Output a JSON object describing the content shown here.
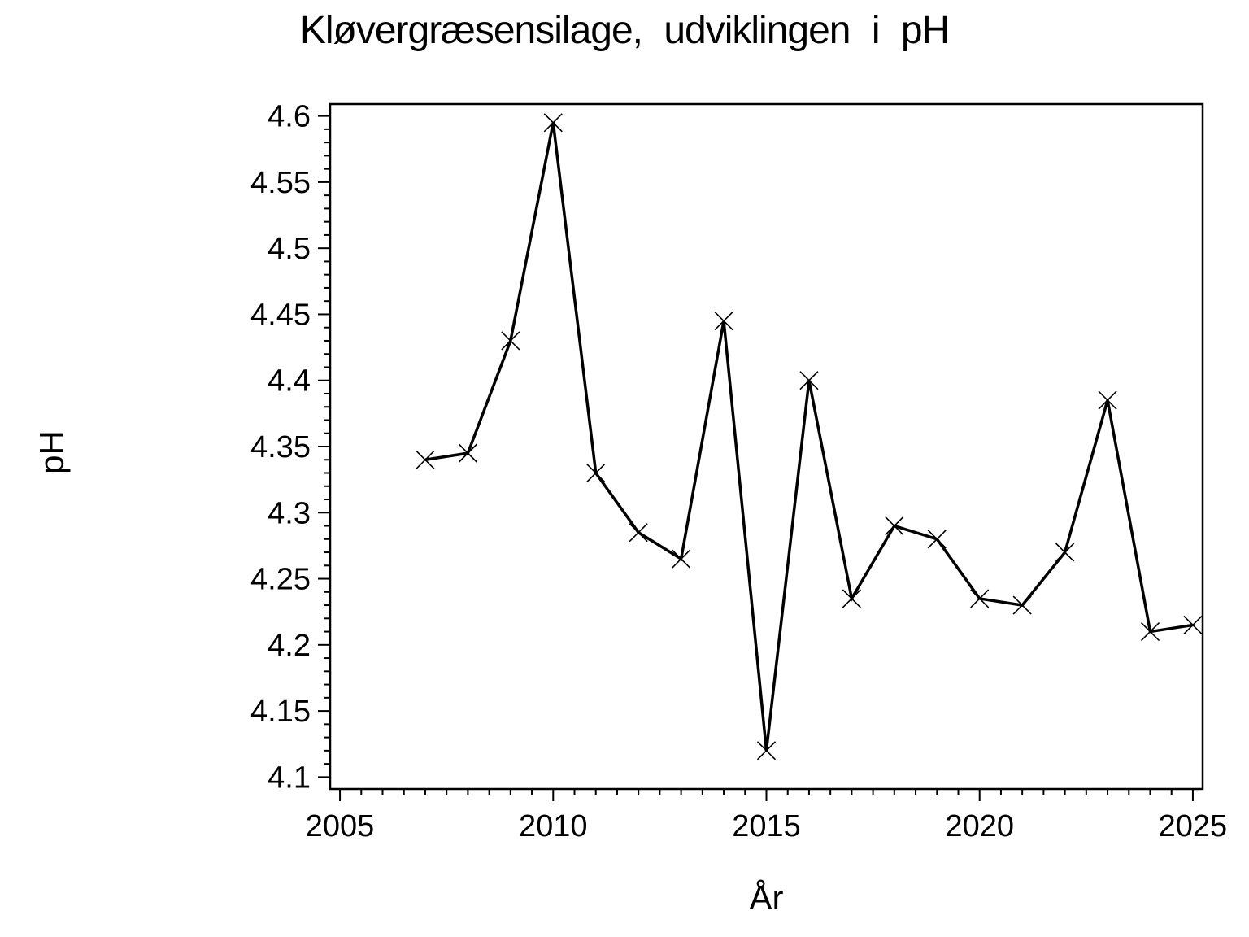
{
  "page": {
    "background": "#ffffff",
    "foreground": "#000000"
  },
  "chart_data": {
    "type": "line",
    "title": "Kløvergræsensilage, udviklingen i pH",
    "xlabel": "År",
    "ylabel": "pH",
    "x": [
      2007,
      2008,
      2009,
      2010,
      2011,
      2012,
      2013,
      2014,
      2015,
      2016,
      2017,
      2018,
      2019,
      2020,
      2021,
      2022,
      2023,
      2024,
      2025
    ],
    "y": [
      4.34,
      4.345,
      4.43,
      4.595,
      4.33,
      4.285,
      4.265,
      4.445,
      4.12,
      4.4,
      4.235,
      4.29,
      4.28,
      4.235,
      4.23,
      4.27,
      4.385,
      4.21,
      4.215
    ],
    "series_name": "pH",
    "marker": "x",
    "line_color": "#000000",
    "marker_color": "#000000",
    "xlim": [
      2004.77,
      2025.23
    ],
    "ylim": [
      4.091,
      4.609
    ],
    "x_major_ticks": [
      2005,
      2010,
      2015,
      2020,
      2025
    ],
    "x_tick_labels": [
      "2005",
      "2010",
      "2015",
      "2020",
      "2025"
    ],
    "x_minor_step": 0.5,
    "y_major_ticks": [
      4.1,
      4.15,
      4.2,
      4.25,
      4.3,
      4.35,
      4.4,
      4.45,
      4.5,
      4.55,
      4.6
    ],
    "y_tick_labels": [
      "4.1",
      "4.15",
      "4.2",
      "4.25",
      "4.3",
      "4.35",
      "4.4",
      "4.45",
      "4.5",
      "4.55",
      "4.6"
    ],
    "y_minor_step": 0.01,
    "grid": false,
    "legend": "none",
    "frame": "box"
  }
}
